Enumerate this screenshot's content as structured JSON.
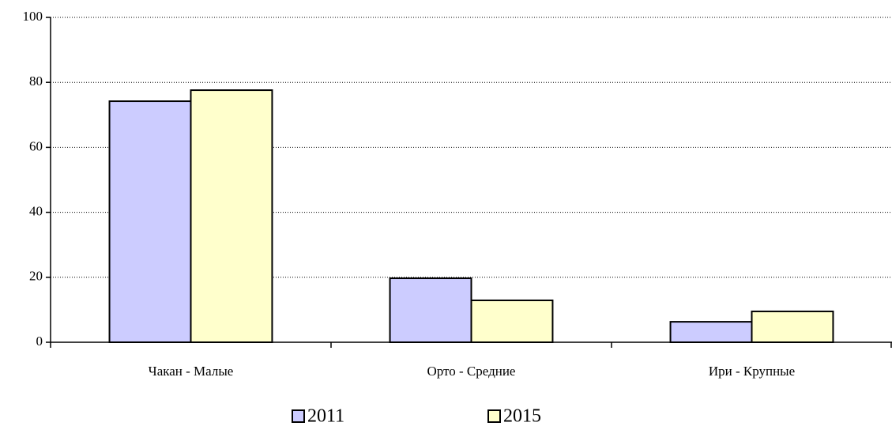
{
  "chart_data": {
    "type": "bar",
    "categories": [
      "Чакан - Малые",
      "Орто - Средние",
      "Ири - Крупные"
    ],
    "series": [
      {
        "name": "2011",
        "color": "#ccccff",
        "values": [
          74.2,
          19.7,
          6.3
        ]
      },
      {
        "name": "2015",
        "color": "#ffffcc",
        "values": [
          77.6,
          12.9,
          9.5
        ]
      }
    ],
    "ylim": [
      0,
      100
    ],
    "yticks": [
      0,
      20,
      40,
      60,
      80,
      100
    ],
    "grid": true
  }
}
